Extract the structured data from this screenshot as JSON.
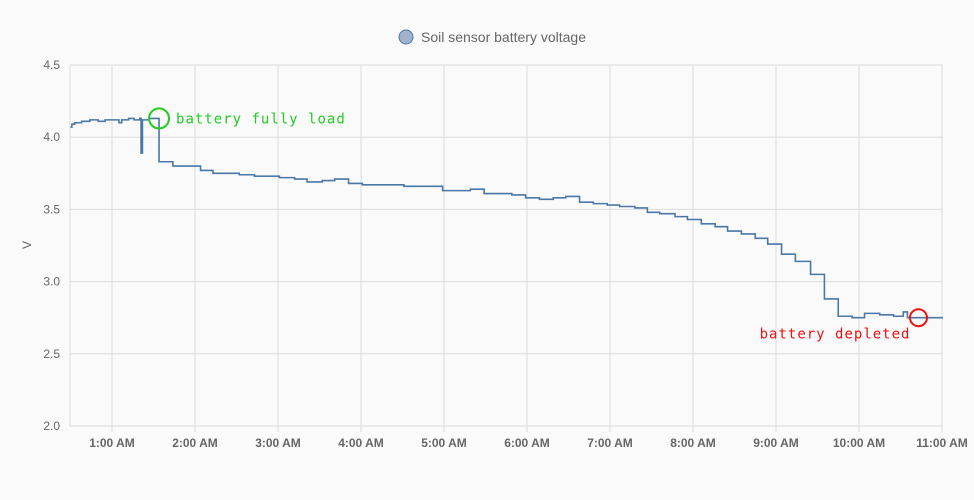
{
  "chart_data": {
    "type": "line",
    "step": true,
    "legend": {
      "placement": "top",
      "entries": [
        {
          "name": "Soil sensor battery voltage",
          "color": "#4a77a6",
          "fill": "#9fb3cc"
        }
      ]
    },
    "ylabel": "V",
    "xlabel": "",
    "ylim": [
      2.0,
      4.5
    ],
    "yticks": [
      "2.0",
      "2.5",
      "3.0",
      "3.5",
      "4.0",
      "4.5"
    ],
    "xlim": [
      "0:30",
      "11:00"
    ],
    "xticks": [
      "1:00 AM",
      "2:00 AM",
      "3:00 AM",
      "4:00 AM",
      "5:00 AM",
      "6:00 AM",
      "7:00 AM",
      "8:00 AM",
      "9:00 AM",
      "10:00 AM",
      "11:00 AM"
    ],
    "grid": true,
    "series": [
      {
        "name": "Soil sensor battery voltage",
        "color": "#4a77a6",
        "points": [
          [
            "0:30",
            4.07
          ],
          [
            "0:31",
            4.09
          ],
          [
            "0:33",
            4.1
          ],
          [
            "0:38",
            4.11
          ],
          [
            "0:44",
            4.12
          ],
          [
            "0:50",
            4.11
          ],
          [
            "0:55",
            4.12
          ],
          [
            "1:00",
            4.12
          ],
          [
            "1:05",
            4.1
          ],
          [
            "1:07",
            4.12
          ],
          [
            "1:12",
            4.13
          ],
          [
            "1:16",
            4.12
          ],
          [
            "1:20",
            4.13
          ],
          [
            "1:21",
            3.89
          ],
          [
            "1:22",
            4.12
          ],
          [
            "1:27",
            4.13
          ],
          [
            "1:34",
            3.83
          ],
          [
            "1:44",
            3.8
          ],
          [
            "2:04",
            3.77
          ],
          [
            "2:13",
            3.75
          ],
          [
            "2:32",
            3.74
          ],
          [
            "2:43",
            3.73
          ],
          [
            "3:01",
            3.72
          ],
          [
            "3:12",
            3.71
          ],
          [
            "3:21",
            3.69
          ],
          [
            "3:32",
            3.7
          ],
          [
            "3:41",
            3.71
          ],
          [
            "3:51",
            3.68
          ],
          [
            "4:01",
            3.67
          ],
          [
            "4:31",
            3.66
          ],
          [
            "4:59",
            3.63
          ],
          [
            "5:19",
            3.64
          ],
          [
            "5:29",
            3.61
          ],
          [
            "5:49",
            3.6
          ],
          [
            "5:59",
            3.58
          ],
          [
            "6:09",
            3.57
          ],
          [
            "6:19",
            3.58
          ],
          [
            "6:28",
            3.59
          ],
          [
            "6:38",
            3.55
          ],
          [
            "6:48",
            3.54
          ],
          [
            "6:58",
            3.53
          ],
          [
            "7:07",
            3.52
          ],
          [
            "7:18",
            3.51
          ],
          [
            "7:27",
            3.48
          ],
          [
            "7:36",
            3.47
          ],
          [
            "7:47",
            3.45
          ],
          [
            "7:56",
            3.43
          ],
          [
            "8:06",
            3.4
          ],
          [
            "8:16",
            3.38
          ],
          [
            "8:25",
            3.35
          ],
          [
            "8:35",
            3.33
          ],
          [
            "8:45",
            3.3
          ],
          [
            "8:54",
            3.26
          ],
          [
            "9:04",
            3.19
          ],
          [
            "9:14",
            3.14
          ],
          [
            "9:25",
            3.05
          ],
          [
            "9:35",
            2.88
          ],
          [
            "9:45",
            2.76
          ],
          [
            "9:55",
            2.75
          ],
          [
            "10:04",
            2.78
          ],
          [
            "10:15",
            2.77
          ],
          [
            "10:25",
            2.76
          ],
          [
            "10:32",
            2.79
          ],
          [
            "10:35",
            2.75
          ],
          [
            "11:01",
            2.75
          ]
        ]
      }
    ],
    "annotations": [
      {
        "text": "battery fully load",
        "at": [
          "1:34",
          4.13
        ],
        "color": "#22cc22",
        "shape": "circle"
      },
      {
        "text": "battery depleted",
        "at": [
          "10:43",
          2.75
        ],
        "color": "#ee1111",
        "shape": "circle"
      }
    ]
  }
}
